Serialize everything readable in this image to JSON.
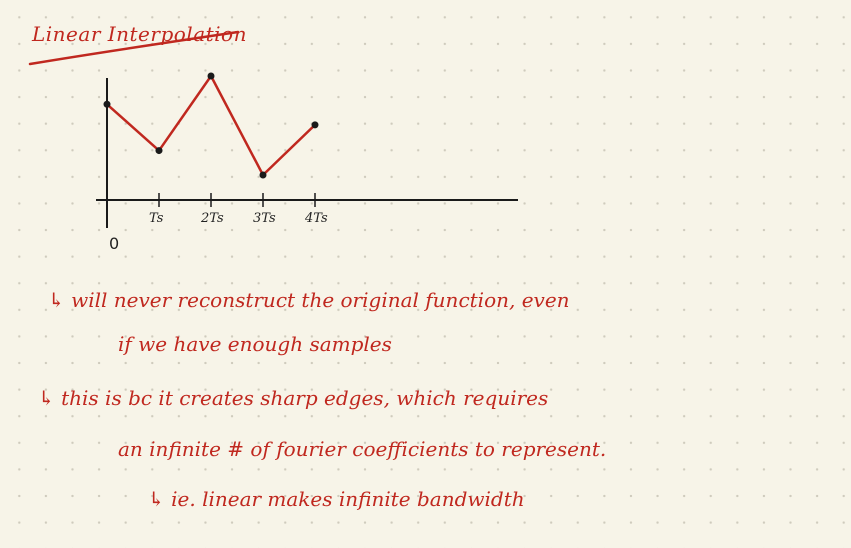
{
  "title": "Linear Interpolation",
  "graph": {
    "origin_label": "0",
    "ticks": [
      "Ts",
      "2Ts",
      "3Ts",
      "4Ts"
    ],
    "samples": [
      {
        "t": 0,
        "value": 0.78
      },
      {
        "t": 1,
        "value": 0.42
      },
      {
        "t": 2,
        "value": 1.0
      },
      {
        "t": 3,
        "value": 0.23
      },
      {
        "t": 4,
        "value": 0.62
      }
    ],
    "line_color": "#c0281f",
    "axis_color": "#1a1a1a"
  },
  "notes": [
    "↳ will never reconstruct the original function, even",
    "if we have enough samples",
    "↳ this is bc it creates sharp edges, which requires",
    "an infinite # of fourier coefficients to represent.",
    "↳ ie. linear makes infinite bandwidth"
  ]
}
